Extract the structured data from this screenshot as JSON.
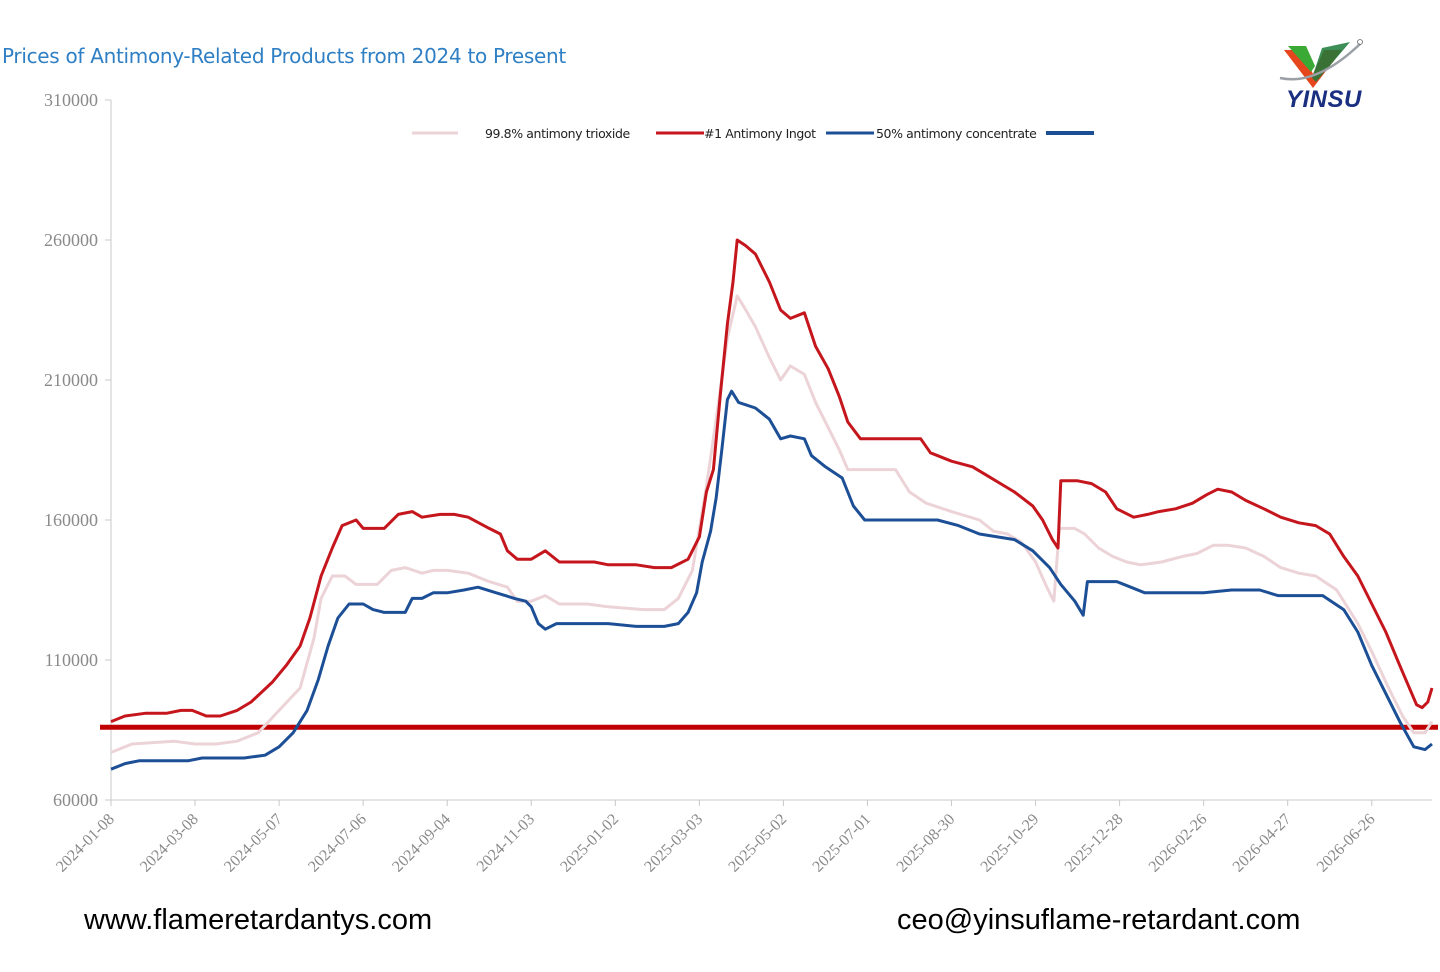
{
  "title": "Prices of Antimony-Related Products from 2024 to Present",
  "logo_text": "YINSU",
  "footer": {
    "website": "www.flameretardantys.com",
    "email": "ceo@yinsuflame-retardant.com"
  },
  "colors": {
    "title": "#2f7fc4",
    "trioxide": "#ecd3d7",
    "ingot": "#c4161c",
    "concentrate": "#1c4f96",
    "reference_line": "#c00000",
    "axis": "#c8c8c8",
    "tick_label": "#8a8a8a"
  },
  "chart_data": {
    "type": "line",
    "title": "Prices of Antimony-Related Products from 2024 to Present",
    "xlabel": "",
    "ylabel": "",
    "ylim": [
      60000,
      310000
    ],
    "yticks": [
      60000,
      110000,
      160000,
      210000,
      260000,
      310000
    ],
    "grid": false,
    "legend_position": "top-center",
    "x_tick_labels": [
      "2024-01-08",
      "2024-03-08",
      "2024-05-07",
      "2024-07-06",
      "2024-09-04",
      "2024-11-03",
      "2025-01-02",
      "2025-03-03",
      "2025-05-02",
      "2025-07-01",
      "2025-08-30",
      "2025-10-29",
      "2025-12-28",
      "2026-02-26",
      "2026-04-27",
      "2026-06-26"
    ],
    "x_tick_index": [
      0,
      60,
      120,
      180,
      240,
      300,
      360,
      420,
      480,
      540,
      600,
      660,
      720,
      780,
      840,
      900
    ],
    "x_max_index": 943,
    "reference_line": {
      "y": 86000,
      "color": "#c00000"
    },
    "series": [
      {
        "name": "99.8% antimony trioxide",
        "color": "#ecd3d7",
        "width": 2.5,
        "points": [
          [
            0,
            77000
          ],
          [
            15,
            80000
          ],
          [
            45,
            81000
          ],
          [
            60,
            80000
          ],
          [
            75,
            80000
          ],
          [
            90,
            81000
          ],
          [
            105,
            84000
          ],
          [
            120,
            92000
          ],
          [
            135,
            100000
          ],
          [
            145,
            118000
          ],
          [
            150,
            132000
          ],
          [
            158,
            140000
          ],
          [
            167,
            140000
          ],
          [
            175,
            137000
          ],
          [
            190,
            137000
          ],
          [
            200,
            142000
          ],
          [
            210,
            143000
          ],
          [
            222,
            141000
          ],
          [
            230,
            142000
          ],
          [
            240,
            142000
          ],
          [
            255,
            141000
          ],
          [
            270,
            138000
          ],
          [
            283,
            136000
          ],
          [
            290,
            131000
          ],
          [
            300,
            131000
          ],
          [
            310,
            133000
          ],
          [
            320,
            130000
          ],
          [
            340,
            130000
          ],
          [
            355,
            129000
          ],
          [
            380,
            128000
          ],
          [
            395,
            128000
          ],
          [
            405,
            132000
          ],
          [
            415,
            142000
          ],
          [
            425,
            172000
          ],
          [
            432,
            196000
          ],
          [
            440,
            225000
          ],
          [
            447,
            240000
          ],
          [
            452,
            236000
          ],
          [
            460,
            229000
          ],
          [
            470,
            218000
          ],
          [
            478,
            210000
          ],
          [
            485,
            215000
          ],
          [
            495,
            212000
          ],
          [
            503,
            202000
          ],
          [
            512,
            193000
          ],
          [
            520,
            185000
          ],
          [
            526,
            178000
          ],
          [
            540,
            178000
          ],
          [
            560,
            178000
          ],
          [
            570,
            170000
          ],
          [
            582,
            166000
          ],
          [
            600,
            163000
          ],
          [
            620,
            160000
          ],
          [
            630,
            156000
          ],
          [
            640,
            155000
          ],
          [
            650,
            152000
          ],
          [
            660,
            145000
          ],
          [
            668,
            136000
          ],
          [
            673,
            131000
          ],
          [
            677,
            157000
          ],
          [
            688,
            157000
          ],
          [
            695,
            155000
          ],
          [
            705,
            150000
          ],
          [
            715,
            147000
          ],
          [
            725,
            145000
          ],
          [
            735,
            144000
          ],
          [
            750,
            145000
          ],
          [
            765,
            147000
          ],
          [
            775,
            148000
          ],
          [
            787,
            151000
          ],
          [
            797,
            151000
          ],
          [
            810,
            150000
          ],
          [
            823,
            147000
          ],
          [
            835,
            143000
          ],
          [
            848,
            141000
          ],
          [
            860,
            140000
          ],
          [
            875,
            135000
          ],
          [
            890,
            123000
          ],
          [
            900,
            113000
          ],
          [
            912,
            100000
          ],
          [
            922,
            90000
          ],
          [
            930,
            84000
          ],
          [
            938,
            84000
          ],
          [
            943,
            88000
          ]
        ]
      },
      {
        "name": "#1 Antimony Ingot",
        "color": "#c4161c",
        "width": 2.5,
        "points": [
          [
            0,
            88000
          ],
          [
            10,
            90000
          ],
          [
            25,
            91000
          ],
          [
            40,
            91000
          ],
          [
            50,
            92000
          ],
          [
            58,
            92000
          ],
          [
            68,
            90000
          ],
          [
            78,
            90000
          ],
          [
            90,
            92000
          ],
          [
            100,
            95000
          ],
          [
            115,
            102000
          ],
          [
            125,
            108000
          ],
          [
            135,
            115000
          ],
          [
            142,
            125000
          ],
          [
            150,
            140000
          ],
          [
            158,
            150000
          ],
          [
            165,
            158000
          ],
          [
            175,
            160000
          ],
          [
            180,
            157000
          ],
          [
            195,
            157000
          ],
          [
            205,
            162000
          ],
          [
            215,
            163000
          ],
          [
            222,
            161000
          ],
          [
            235,
            162000
          ],
          [
            245,
            162000
          ],
          [
            255,
            161000
          ],
          [
            270,
            157000
          ],
          [
            278,
            155000
          ],
          [
            283,
            149000
          ],
          [
            290,
            146000
          ],
          [
            300,
            146000
          ],
          [
            310,
            149000
          ],
          [
            320,
            145000
          ],
          [
            335,
            145000
          ],
          [
            345,
            145000
          ],
          [
            355,
            144000
          ],
          [
            375,
            144000
          ],
          [
            388,
            143000
          ],
          [
            400,
            143000
          ],
          [
            412,
            146000
          ],
          [
            420,
            154000
          ],
          [
            425,
            170000
          ],
          [
            430,
            178000
          ],
          [
            435,
            205000
          ],
          [
            440,
            230000
          ],
          [
            444,
            245000
          ],
          [
            447,
            260000
          ],
          [
            453,
            258000
          ],
          [
            460,
            255000
          ],
          [
            470,
            245000
          ],
          [
            478,
            235000
          ],
          [
            485,
            232000
          ],
          [
            495,
            234000
          ],
          [
            503,
            222000
          ],
          [
            512,
            214000
          ],
          [
            520,
            204000
          ],
          [
            526,
            195000
          ],
          [
            535,
            189000
          ],
          [
            560,
            189000
          ],
          [
            578,
            189000
          ],
          [
            585,
            184000
          ],
          [
            600,
            181000
          ],
          [
            615,
            179000
          ],
          [
            625,
            176000
          ],
          [
            635,
            173000
          ],
          [
            645,
            170000
          ],
          [
            658,
            165000
          ],
          [
            665,
            160000
          ],
          [
            672,
            153000
          ],
          [
            676,
            150000
          ],
          [
            678,
            174000
          ],
          [
            690,
            174000
          ],
          [
            700,
            173000
          ],
          [
            710,
            170000
          ],
          [
            718,
            164000
          ],
          [
            730,
            161000
          ],
          [
            740,
            162000
          ],
          [
            748,
            163000
          ],
          [
            760,
            164000
          ],
          [
            772,
            166000
          ],
          [
            782,
            169000
          ],
          [
            790,
            171000
          ],
          [
            800,
            170000
          ],
          [
            810,
            167000
          ],
          [
            823,
            164000
          ],
          [
            835,
            161000
          ],
          [
            848,
            159000
          ],
          [
            860,
            158000
          ],
          [
            870,
            155000
          ],
          [
            880,
            147000
          ],
          [
            890,
            140000
          ],
          [
            900,
            130000
          ],
          [
            910,
            120000
          ],
          [
            920,
            108000
          ],
          [
            932,
            94000
          ],
          [
            936,
            93000
          ],
          [
            940,
            95000
          ],
          [
            943,
            100000
          ]
        ]
      },
      {
        "name": "50% antimony concentrate",
        "color": "#1c4f96",
        "width": 2.5,
        "points": [
          [
            0,
            71000
          ],
          [
            10,
            73000
          ],
          [
            20,
            74000
          ],
          [
            40,
            74000
          ],
          [
            55,
            74000
          ],
          [
            65,
            75000
          ],
          [
            80,
            75000
          ],
          [
            95,
            75000
          ],
          [
            110,
            76000
          ],
          [
            120,
            79000
          ],
          [
            130,
            84000
          ],
          [
            140,
            92000
          ],
          [
            148,
            103000
          ],
          [
            155,
            115000
          ],
          [
            162,
            125000
          ],
          [
            170,
            130000
          ],
          [
            180,
            130000
          ],
          [
            187,
            128000
          ],
          [
            195,
            127000
          ],
          [
            210,
            127000
          ],
          [
            215,
            132000
          ],
          [
            222,
            132000
          ],
          [
            230,
            134000
          ],
          [
            240,
            134000
          ],
          [
            252,
            135000
          ],
          [
            262,
            136000
          ],
          [
            275,
            134000
          ],
          [
            288,
            132000
          ],
          [
            296,
            131000
          ],
          [
            300,
            129000
          ],
          [
            305,
            123000
          ],
          [
            310,
            121000
          ],
          [
            318,
            123000
          ],
          [
            340,
            123000
          ],
          [
            355,
            123000
          ],
          [
            375,
            122000
          ],
          [
            395,
            122000
          ],
          [
            405,
            123000
          ],
          [
            412,
            127000
          ],
          [
            418,
            134000
          ],
          [
            422,
            145000
          ],
          [
            428,
            156000
          ],
          [
            432,
            168000
          ],
          [
            436,
            185000
          ],
          [
            440,
            203000
          ],
          [
            443,
            206000
          ],
          [
            448,
            202000
          ],
          [
            460,
            200000
          ],
          [
            470,
            196000
          ],
          [
            478,
            189000
          ],
          [
            485,
            190000
          ],
          [
            495,
            189000
          ],
          [
            500,
            183000
          ],
          [
            510,
            179000
          ],
          [
            522,
            175000
          ],
          [
            530,
            165000
          ],
          [
            538,
            160000
          ],
          [
            560,
            160000
          ],
          [
            590,
            160000
          ],
          [
            605,
            158000
          ],
          [
            620,
            155000
          ],
          [
            645,
            153000
          ],
          [
            658,
            149000
          ],
          [
            670,
            143000
          ],
          [
            678,
            137000
          ],
          [
            688,
            131000
          ],
          [
            694,
            126000
          ],
          [
            697,
            138000
          ],
          [
            718,
            138000
          ],
          [
            728,
            136000
          ],
          [
            738,
            134000
          ],
          [
            755,
            134000
          ],
          [
            780,
            134000
          ],
          [
            800,
            135000
          ],
          [
            820,
            135000
          ],
          [
            833,
            133000
          ],
          [
            850,
            133000
          ],
          [
            865,
            133000
          ],
          [
            880,
            128000
          ],
          [
            890,
            120000
          ],
          [
            900,
            108000
          ],
          [
            910,
            98000
          ],
          [
            920,
            88000
          ],
          [
            930,
            79000
          ],
          [
            938,
            78000
          ],
          [
            943,
            80000
          ]
        ]
      }
    ]
  }
}
